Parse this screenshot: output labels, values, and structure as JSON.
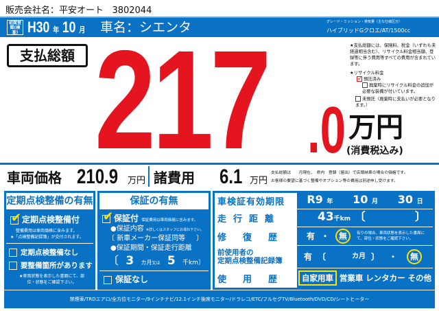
{
  "dealer": {
    "label": "販売会社名：",
    "name": "平安オート",
    "code": "3802044"
  },
  "header": {
    "first_reg": "初度登録(検査)",
    "era_year": "H30",
    "year_unit": "年",
    "month": "10",
    "month_unit": "月",
    "car_name_label": "車名：",
    "car_name": "シエンタ",
    "grade_label": "グレード・ミッション・排気量（主な仕様区分）",
    "grade": "ハイブリッドGクロエ/AT/1500cc"
  },
  "total": {
    "label": "支払総額",
    "int": "217",
    "dec": ".0",
    "unit": "万円",
    "tax": "(消費税込み)"
  },
  "notes": {
    "main": "★支払総額には、保険料、税金（いずれも未経過相当含む）、リサイクル料金相当額、登録等に伴う費用等すべての費用が含まれています。",
    "recycle_title": "★リサイクル料金",
    "deposited": "預託済み",
    "deposited_checked": true,
    "option1": "廃棄時にリサイクル料金の追加が必要な装備が付いています。",
    "option2": "未預託（廃棄時に支払いが必要となります。）"
  },
  "prices": {
    "vehicle_label": "車両価格",
    "vehicle": "210.9",
    "unit": "万円",
    "fees_label": "諸費用",
    "fees": "6.1",
    "note1": "支払総額は　　月現在、　県内　登録（届出）で店頭納車の場合の価格です。",
    "note2": "お客様の要望に基づく整備やオプション等の費用は別途申し受けます。"
  },
  "inspection": {
    "title": "定期点検整備の有無",
    "with": "定期点検整備付",
    "with_checked": true,
    "with_note1": "整備費用は車両価格に含みます。",
    "with_note2": "★「点検整備記録簿」が交付されます。",
    "none": "定期点検整備なし",
    "needs": "要整備箇所があります",
    "needs_note": "★車両状態を表示した書面にて、部位・状態をご確認下さい。"
  },
  "warranty": {
    "title": "保証の有無",
    "with": "保証付",
    "with_checked": true,
    "with_note": "保証費用は車両価格に含みます。",
    "content_label": "●保証内容",
    "content_note": "※詳しくはスタッフにお尋ね下さい。",
    "content": "新車メーカー保証同等",
    "period_label": "●保証期間・保証走行距離",
    "months": "3",
    "months_unit": "カ月",
    "or": "又は",
    "km": "5",
    "km_unit": "千km",
    "none": "保証なし"
  },
  "details": {
    "inspection_label": "車検証有効期限",
    "insp_year": "R9",
    "year_unit": "年",
    "insp_month": "10",
    "month_unit": "月",
    "insp_day": "30",
    "day_unit": "日",
    "mileage_label": "走行距離",
    "mileage": "43",
    "mileage_unit": "千km",
    "repair_label": "修復歴",
    "yes": "有",
    "dot": "・",
    "no": "無",
    "repair_value": "無",
    "repair_note": "有りの場合、車両状態を表示した書面にて、部位・状態をご確認下さい。",
    "record_label1": "前使用者の",
    "record_label2": "定期点検整備記録簿",
    "record_months_unit": "カ月",
    "record_value": "無",
    "usage_label": "使用歴",
    "usage": [
      "自家用車",
      "営業車",
      "レンタカー",
      "その他"
    ],
    "usage_selected": "自家用車"
  },
  "equipment": "禁煙車/TRDエアロ/全方位モニター/9インチナビ/12.1インチ後席モニター/ドラレコ/ETC/フルセグTV/Bluetooth/DVD/CD/シートヒーター",
  "colors": {
    "blue": "#0a72c4",
    "red": "#e4151f",
    "highlight": "#ffe200"
  }
}
